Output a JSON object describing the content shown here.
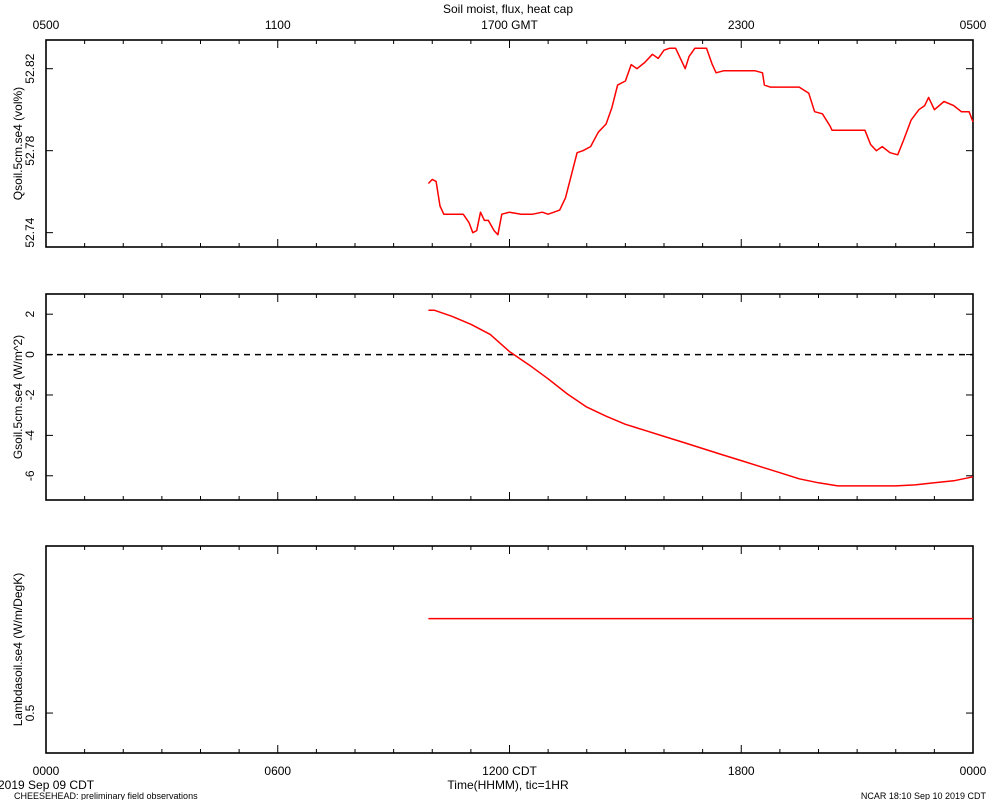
{
  "figure": {
    "title": "Soil moist, flux, heat cap",
    "top_axis_ticks": [
      "0500",
      "1100",
      "1700 GMT",
      "2300",
      "0500"
    ],
    "bottom_axis_ticks": [
      "0000",
      "0600",
      "1200 CDT",
      "1800",
      "0000"
    ],
    "xlabel": "Time(HHMM), tic=1HR",
    "date_label": "2019 Sep 09 CDT",
    "footer_left": "CHEESEHEAD: preliminary field observations",
    "footer_right": "NCAR 18:10 Sep 10 2019 CDT",
    "line_color": "#ff0000",
    "zero_line_color": "#000000"
  },
  "chart_data": [
    {
      "type": "line",
      "ylabel": "Qsoil.5cm.se4 (vol%)",
      "x_units": "hours since 0000 CDT",
      "xlim": [
        0,
        24
      ],
      "ylim": [
        52.733,
        52.834
      ],
      "yticks": [
        52.74,
        52.78,
        52.82
      ],
      "ytick_labels": [
        "52.74",
        "52.78",
        "52.82"
      ],
      "series": [
        {
          "x": [
            9.9,
            10.0,
            10.1,
            10.2,
            10.3,
            10.5,
            10.8,
            10.95,
            11.05,
            11.15,
            11.25,
            11.35,
            11.45,
            11.6,
            11.7,
            11.8,
            12.0,
            12.3,
            12.6,
            12.85,
            13.0,
            13.15,
            13.3,
            13.45,
            13.6,
            13.75,
            13.9,
            14.1,
            14.3,
            14.5,
            14.65,
            14.8,
            15.0,
            15.15,
            15.3,
            15.5,
            15.7,
            15.85,
            16.0,
            16.15,
            16.3,
            16.55,
            16.65,
            16.8,
            16.9,
            17.1,
            17.25,
            17.35,
            17.55,
            17.65,
            17.8,
            18.0,
            18.35,
            18.55,
            18.6,
            18.75,
            19.0,
            19.5,
            19.75,
            19.9,
            20.1,
            20.3,
            20.35,
            20.45,
            21.0,
            21.2,
            21.35,
            21.5,
            21.65,
            21.85,
            22.05,
            22.2,
            22.4,
            22.6,
            22.75,
            22.85,
            23.0,
            23.25,
            23.5,
            23.7,
            23.9,
            24.0
          ],
          "y": [
            52.764,
            52.766,
            52.765,
            52.753,
            52.749,
            52.749,
            52.749,
            52.745,
            52.74,
            52.741,
            52.75,
            52.746,
            52.746,
            52.741,
            52.739,
            52.749,
            52.75,
            52.749,
            52.749,
            52.75,
            52.749,
            52.75,
            52.751,
            52.757,
            52.768,
            52.779,
            52.78,
            52.782,
            52.789,
            52.793,
            52.801,
            52.812,
            52.814,
            52.822,
            52.82,
            52.823,
            52.827,
            52.825,
            52.829,
            52.83,
            52.83,
            52.82,
            52.826,
            52.83,
            52.83,
            52.83,
            52.822,
            52.818,
            52.819,
            52.819,
            52.819,
            52.819,
            52.819,
            52.818,
            52.812,
            52.811,
            52.811,
            52.811,
            52.808,
            52.799,
            52.798,
            52.792,
            52.79,
            52.79,
            52.79,
            52.79,
            52.783,
            52.78,
            52.782,
            52.779,
            52.778,
            52.785,
            52.795,
            52.8,
            52.802,
            52.806,
            52.8,
            52.804,
            52.802,
            52.799,
            52.799,
            52.794
          ]
        }
      ]
    },
    {
      "type": "line",
      "ylabel": "Gsoil.5cm.se4 (W/m^2)",
      "x_units": "hours since 0000 CDT",
      "xlim": [
        0,
        24
      ],
      "ylim": [
        -7.2,
        3.0
      ],
      "yticks": [
        -6,
        -4,
        -2,
        0,
        2
      ],
      "ytick_labels": [
        "-6",
        "-4",
        "-2",
        "0",
        "2"
      ],
      "reference_line": 0,
      "series": [
        {
          "x": [
            9.9,
            10.05,
            10.5,
            11.0,
            11.5,
            12.0,
            12.5,
            13.0,
            13.5,
            14.0,
            14.5,
            15.0,
            15.5,
            16.0,
            16.5,
            17.0,
            17.5,
            18.0,
            18.5,
            19.0,
            19.5,
            20.0,
            20.5,
            21.0,
            21.5,
            22.0,
            22.5,
            23.0,
            23.5,
            24.0
          ],
          "y": [
            2.2,
            2.2,
            1.9,
            1.5,
            1.0,
            0.15,
            -0.5,
            -1.2,
            -1.95,
            -2.6,
            -3.05,
            -3.45,
            -3.75,
            -4.05,
            -4.35,
            -4.65,
            -4.95,
            -5.25,
            -5.55,
            -5.85,
            -6.15,
            -6.35,
            -6.5,
            -6.5,
            -6.5,
            -6.5,
            -6.45,
            -6.35,
            -6.25,
            -6.05
          ]
        }
      ]
    },
    {
      "type": "line",
      "ylabel": "Lambdasoil.se4 (W/m/DegK)",
      "x_units": "hours since 0000 CDT",
      "xlim": [
        0,
        24
      ],
      "yticks": [
        0.5
      ],
      "ytick_labels": [
        "0.5"
      ],
      "series": [
        {
          "x": [
            9.9,
            24.0
          ],
          "y": [
            0.76,
            0.76
          ]
        }
      ]
    }
  ]
}
